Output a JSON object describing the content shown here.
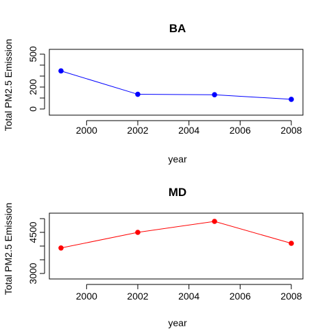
{
  "chart_data": [
    {
      "type": "line",
      "title": "BA",
      "xlabel": "year",
      "ylabel": "Total PM2.5 Emission",
      "x": [
        1999,
        2002,
        2005,
        2008
      ],
      "y": [
        347,
        134,
        130,
        88
      ],
      "xlim": [
        1998.5,
        2008.5
      ],
      "ylim": [
        0,
        500
      ],
      "xticks": [
        2000,
        2002,
        2004,
        2006,
        2008
      ],
      "yticks": [
        0,
        100,
        200,
        300,
        400,
        500
      ],
      "ytick_labels": [
        "0",
        "",
        "200",
        "",
        "",
        "500"
      ],
      "color": "#0000ff",
      "grid": false
    },
    {
      "type": "line",
      "title": "MD",
      "xlabel": "year",
      "ylabel": "Total PM2.5 Emission",
      "x": [
        1999,
        2002,
        2005,
        2008
      ],
      "y": [
        3930,
        4500,
        4900,
        4100
      ],
      "xlim": [
        1998.5,
        2008.5
      ],
      "ylim": [
        3000,
        5000
      ],
      "xticks": [
        2000,
        2002,
        2004,
        2006,
        2008
      ],
      "yticks": [
        3000,
        3500,
        4000,
        4500,
        5000
      ],
      "ytick_labels": [
        "3000",
        "",
        "",
        "4500",
        ""
      ],
      "color": "#ff0000",
      "grid": false
    }
  ]
}
